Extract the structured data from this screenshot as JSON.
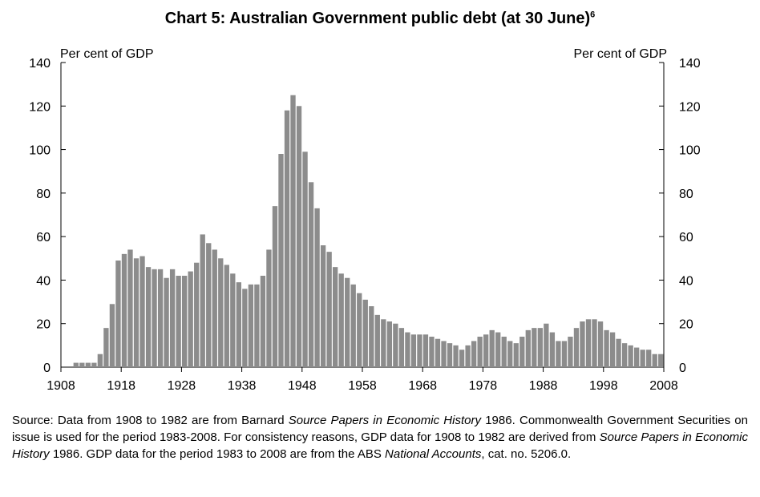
{
  "chart_data": {
    "type": "bar",
    "title": "Chart 5: Australian Government public debt (at 30 June)",
    "title_footnote": "6",
    "ylabel_left": "Per cent of GDP",
    "ylabel_right": "Per cent of GDP",
    "xlabel": "",
    "ylim": [
      0,
      140
    ],
    "yticks": [
      0,
      20,
      40,
      60,
      80,
      100,
      120,
      140
    ],
    "xlim": [
      1908,
      2008
    ],
    "xticks": [
      1908,
      1918,
      1928,
      1938,
      1948,
      1958,
      1968,
      1978,
      1988,
      1998,
      2008
    ],
    "series": [
      {
        "name": "Australian Government public debt",
        "color": "#8c8c8c",
        "x": [
          1911,
          1912,
          1913,
          1914,
          1915,
          1916,
          1917,
          1918,
          1919,
          1920,
          1921,
          1922,
          1923,
          1924,
          1925,
          1926,
          1927,
          1928,
          1929,
          1930,
          1931,
          1932,
          1933,
          1934,
          1935,
          1936,
          1937,
          1938,
          1939,
          1940,
          1941,
          1942,
          1943,
          1944,
          1945,
          1946,
          1947,
          1948,
          1949,
          1950,
          1951,
          1952,
          1953,
          1954,
          1955,
          1956,
          1957,
          1958,
          1959,
          1960,
          1961,
          1962,
          1963,
          1964,
          1965,
          1966,
          1967,
          1968,
          1969,
          1970,
          1971,
          1972,
          1973,
          1974,
          1975,
          1976,
          1977,
          1978,
          1979,
          1980,
          1981,
          1982,
          1983,
          1984,
          1985,
          1986,
          1987,
          1988,
          1989,
          1990,
          1991,
          1992,
          1993,
          1994,
          1995,
          1996,
          1997,
          1998,
          1999,
          2000,
          2001,
          2002,
          2003,
          2004,
          2005,
          2006,
          2007,
          2008
        ],
        "values": [
          2,
          2,
          2,
          2,
          6,
          18,
          29,
          49,
          52,
          54,
          50,
          51,
          46,
          45,
          45,
          41,
          45,
          42,
          42,
          44,
          48,
          61,
          57,
          54,
          50,
          47,
          43,
          39,
          36,
          38,
          38,
          42,
          54,
          74,
          98,
          118,
          125,
          120,
          99,
          85,
          73,
          56,
          53,
          46,
          43,
          41,
          38,
          34,
          31,
          28,
          24,
          22,
          21,
          20,
          18,
          16,
          15,
          15,
          15,
          14,
          13,
          12,
          11,
          10,
          8,
          10,
          12,
          14,
          15,
          17,
          16,
          14,
          12,
          11,
          14,
          17,
          18,
          18,
          20,
          16,
          12,
          12,
          14,
          18,
          21,
          22,
          22,
          21,
          17,
          16,
          13,
          11,
          10,
          9,
          8,
          8,
          6,
          6
        ]
      }
    ]
  },
  "source_note": {
    "p1": "Source: Data from 1908 to 1982 are from Barnard ",
    "i1": "Source Papers in Economic History",
    "p2": " 1986. Commonwealth Government Securities on issue is used for the period 1983-2008. For consistency reasons, GDP data for 1908 to 1982 are derived from ",
    "i2": "Source Papers in Economic History",
    "p3": " 1986. GDP data for the period 1983 to 2008 are from the ABS ",
    "i3": "National Accounts",
    "p4": ", cat. no. 5206.0."
  }
}
